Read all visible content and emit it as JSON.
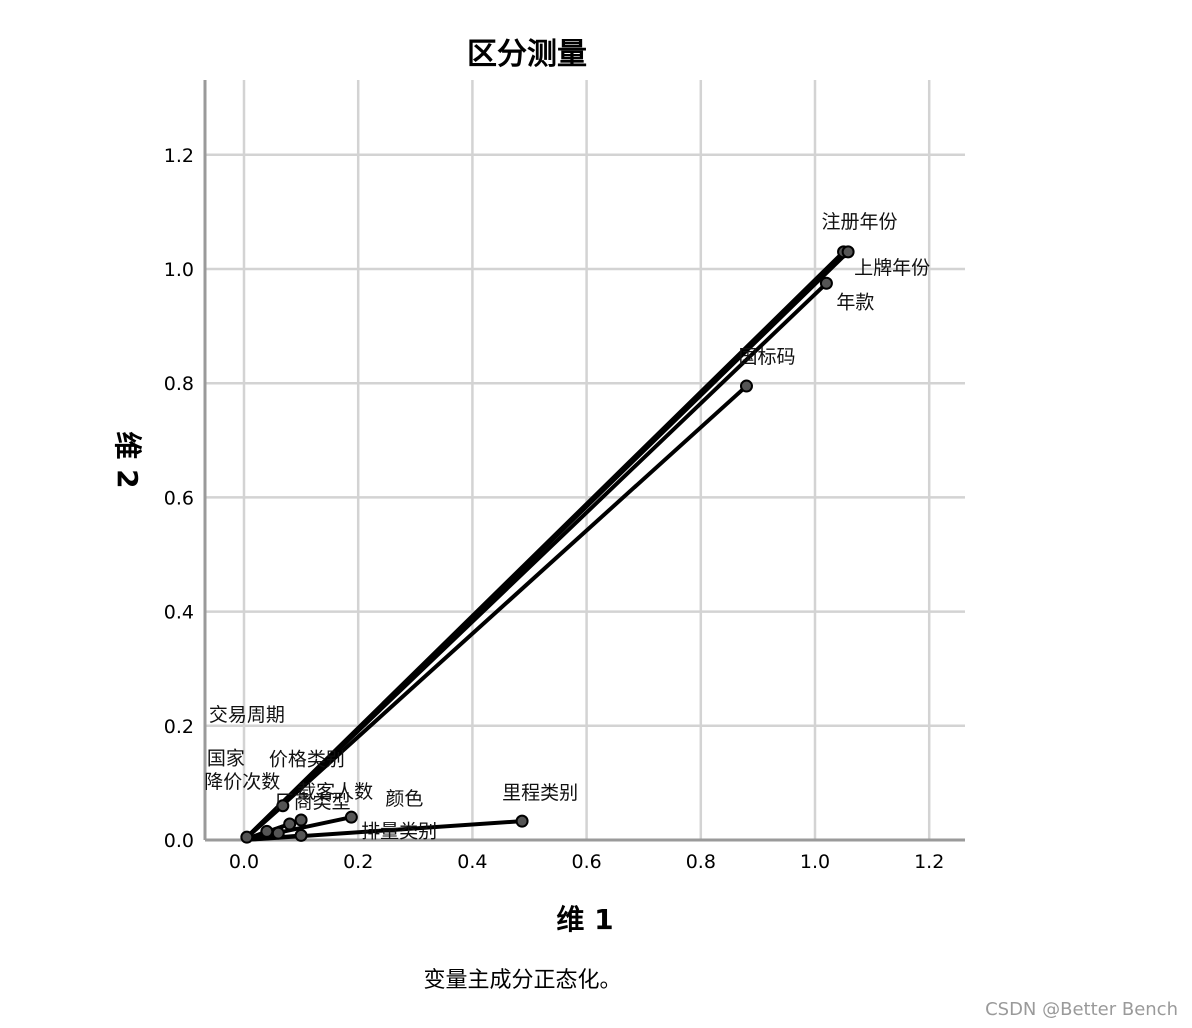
{
  "chart_data": {
    "type": "scatter",
    "title": "区分测量",
    "xlabel": "维 1",
    "ylabel": "维 2",
    "xlim": [
      -0.06,
      1.27
    ],
    "ylim": [
      0.0,
      1.33
    ],
    "x_ticks": [
      "0.0",
      "0.2",
      "0.4",
      "0.6",
      "0.8",
      "1.0",
      "1.2"
    ],
    "y_ticks": [
      "0.0",
      "0.2",
      "0.4",
      "0.6",
      "0.8",
      "1.0",
      "1.2"
    ],
    "grid": true,
    "vectors_from_origin": true,
    "points": [
      {
        "label": "注册年份",
        "x": 1.05,
        "y": 1.03
      },
      {
        "label": "上牌年份",
        "x": 1.058,
        "y": 1.03
      },
      {
        "label": "年款",
        "x": 1.02,
        "y": 0.975
      },
      {
        "label": "国标码",
        "x": 0.88,
        "y": 0.795
      },
      {
        "label": "里程类别",
        "x": 0.487,
        "y": 0.033
      },
      {
        "label": "颜色",
        "x": 0.188,
        "y": 0.04
      },
      {
        "label": "排量类别",
        "x": 0.1,
        "y": 0.008
      },
      {
        "label": "载客人数",
        "x": 0.1,
        "y": 0.035
      },
      {
        "label": "厂商类型",
        "x": 0.08,
        "y": 0.028
      },
      {
        "label": "价格类别",
        "x": 0.068,
        "y": 0.06
      },
      {
        "label": "降价次数",
        "x": 0.06,
        "y": 0.012
      },
      {
        "label": "国家",
        "x": 0.04,
        "y": 0.015
      },
      {
        "label": "交易周期",
        "x": 0.005,
        "y": 0.005
      }
    ]
  },
  "footnote": "变量主成分正态化。",
  "watermark": "CSDN @Better Bench"
}
